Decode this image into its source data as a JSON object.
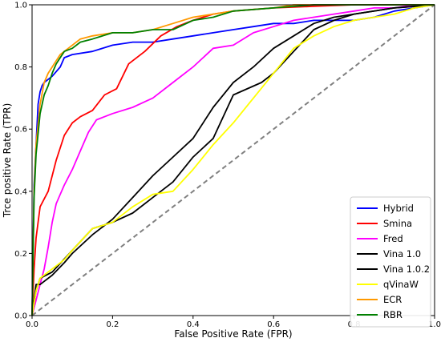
{
  "chart_data": {
    "type": "line",
    "xlabel": "False Positive Rate (FPR)",
    "ylabel": "Trce positive Rate (TPR)",
    "xlim": [
      0,
      1
    ],
    "ylim": [
      0,
      1
    ],
    "x_ticks": [
      "0.0",
      "0.2",
      "0.4",
      "0.6",
      "0.8",
      "1.0"
    ],
    "y_ticks": [
      "0.0",
      "0.2",
      "0.4",
      "0.6",
      "0.8",
      "1.0"
    ],
    "grid": false,
    "legend_position": "lower-right",
    "reference_line": {
      "x": [
        0,
        1
      ],
      "y": [
        0,
        1
      ],
      "color": "#808080",
      "style": "dashed"
    },
    "series": [
      {
        "name": "Hybrid",
        "color": "#0000ff",
        "x": [
          0,
          0.005,
          0.01,
          0.015,
          0.02,
          0.025,
          0.03,
          0.05,
          0.07,
          0.08,
          0.1,
          0.15,
          0.2,
          0.25,
          0.3,
          0.35,
          0.4,
          0.45,
          0.5,
          0.55,
          0.6,
          0.65,
          0.7,
          0.75,
          0.8,
          0.85,
          0.9,
          0.95,
          1.0
        ],
        "y": [
          0,
          0.42,
          0.55,
          0.68,
          0.72,
          0.74,
          0.75,
          0.77,
          0.8,
          0.83,
          0.84,
          0.85,
          0.87,
          0.88,
          0.88,
          0.89,
          0.9,
          0.91,
          0.92,
          0.93,
          0.94,
          0.94,
          0.95,
          0.95,
          0.95,
          0.96,
          0.98,
          0.99,
          1.0
        ]
      },
      {
        "name": "Smina",
        "color": "#ff0000",
        "x": [
          0,
          0.005,
          0.01,
          0.02,
          0.04,
          0.06,
          0.08,
          0.1,
          0.12,
          0.15,
          0.18,
          0.21,
          0.24,
          0.28,
          0.32,
          0.36,
          0.4,
          0.45,
          0.5,
          0.55,
          0.6,
          0.7,
          0.8,
          0.9,
          1.0
        ],
        "y": [
          0,
          0.15,
          0.25,
          0.35,
          0.4,
          0.5,
          0.58,
          0.62,
          0.64,
          0.66,
          0.71,
          0.73,
          0.81,
          0.85,
          0.9,
          0.93,
          0.95,
          0.97,
          0.98,
          0.985,
          0.99,
          0.995,
          1.0,
          1.0,
          1.0
        ]
      },
      {
        "name": "Fred",
        "color": "#ff00ff",
        "x": [
          0,
          0.01,
          0.02,
          0.03,
          0.04,
          0.05,
          0.06,
          0.07,
          0.08,
          0.1,
          0.12,
          0.14,
          0.16,
          0.18,
          0.2,
          0.25,
          0.3,
          0.35,
          0.4,
          0.45,
          0.5,
          0.55,
          0.6,
          0.65,
          0.7,
          0.75,
          0.8,
          0.85,
          0.9,
          0.95,
          1.0
        ],
        "y": [
          0,
          0.05,
          0.1,
          0.15,
          0.22,
          0.3,
          0.36,
          0.39,
          0.42,
          0.47,
          0.53,
          0.59,
          0.63,
          0.64,
          0.65,
          0.67,
          0.7,
          0.75,
          0.8,
          0.86,
          0.87,
          0.91,
          0.93,
          0.95,
          0.96,
          0.97,
          0.98,
          0.99,
          0.99,
          1.0,
          1.0
        ]
      },
      {
        "name": "Vina 1.0",
        "color": "#000000",
        "x": [
          0,
          0.01,
          0.02,
          0.05,
          0.08,
          0.1,
          0.15,
          0.2,
          0.25,
          0.3,
          0.35,
          0.4,
          0.45,
          0.5,
          0.55,
          0.6,
          0.65,
          0.7,
          0.75,
          0.8,
          0.9,
          1.0
        ],
        "y": [
          0,
          0.1,
          0.1,
          0.13,
          0.17,
          0.2,
          0.26,
          0.31,
          0.38,
          0.45,
          0.51,
          0.57,
          0.67,
          0.75,
          0.8,
          0.86,
          0.9,
          0.94,
          0.96,
          0.97,
          0.99,
          1.0
        ]
      },
      {
        "name": "Vina 1.0.2",
        "color": "#000000",
        "x": [
          0,
          0.01,
          0.02,
          0.05,
          0.1,
          0.15,
          0.2,
          0.25,
          0.3,
          0.35,
          0.4,
          0.45,
          0.5,
          0.57,
          0.6,
          0.65,
          0.7,
          0.75,
          0.8,
          0.9,
          1.0
        ],
        "y": [
          0,
          0.08,
          0.12,
          0.14,
          0.21,
          0.28,
          0.3,
          0.33,
          0.38,
          0.43,
          0.51,
          0.57,
          0.71,
          0.75,
          0.78,
          0.85,
          0.92,
          0.95,
          0.97,
          0.99,
          1.0
        ]
      },
      {
        "name": "qVinaW",
        "color": "#ffff00",
        "x": [
          0,
          0.01,
          0.02,
          0.05,
          0.08,
          0.1,
          0.15,
          0.2,
          0.25,
          0.3,
          0.35,
          0.4,
          0.45,
          0.5,
          0.55,
          0.6,
          0.65,
          0.7,
          0.75,
          0.8,
          0.85,
          0.9,
          0.95,
          1.0
        ],
        "y": [
          0,
          0.08,
          0.12,
          0.15,
          0.18,
          0.21,
          0.28,
          0.3,
          0.35,
          0.39,
          0.4,
          0.47,
          0.55,
          0.62,
          0.7,
          0.78,
          0.86,
          0.9,
          0.93,
          0.95,
          0.96,
          0.97,
          0.99,
          1.0
        ]
      },
      {
        "name": "ECR",
        "color": "#ff9900",
        "x": [
          0,
          0.005,
          0.01,
          0.02,
          0.03,
          0.04,
          0.05,
          0.06,
          0.07,
          0.08,
          0.1,
          0.12,
          0.15,
          0.2,
          0.25,
          0.3,
          0.35,
          0.4,
          0.45,
          0.5,
          0.6,
          0.65,
          0.7,
          0.8,
          0.9,
          1.0
        ],
        "y": [
          0,
          0.4,
          0.55,
          0.68,
          0.75,
          0.78,
          0.8,
          0.82,
          0.84,
          0.85,
          0.87,
          0.89,
          0.9,
          0.91,
          0.91,
          0.92,
          0.94,
          0.96,
          0.97,
          0.98,
          0.99,
          1.0,
          1.0,
          1.0,
          1.0,
          1.0
        ]
      },
      {
        "name": "RBR",
        "color": "#008000",
        "x": [
          0,
          0.005,
          0.01,
          0.02,
          0.03,
          0.04,
          0.05,
          0.06,
          0.07,
          0.08,
          0.1,
          0.12,
          0.15,
          0.2,
          0.25,
          0.3,
          0.35,
          0.4,
          0.45,
          0.5,
          0.6,
          0.7,
          0.8,
          0.9,
          1.0
        ],
        "y": [
          0,
          0.38,
          0.52,
          0.65,
          0.71,
          0.74,
          0.78,
          0.81,
          0.83,
          0.85,
          0.86,
          0.88,
          0.89,
          0.91,
          0.91,
          0.92,
          0.92,
          0.95,
          0.96,
          0.98,
          0.99,
          1.0,
          1.0,
          1.0,
          1.0
        ]
      }
    ]
  }
}
